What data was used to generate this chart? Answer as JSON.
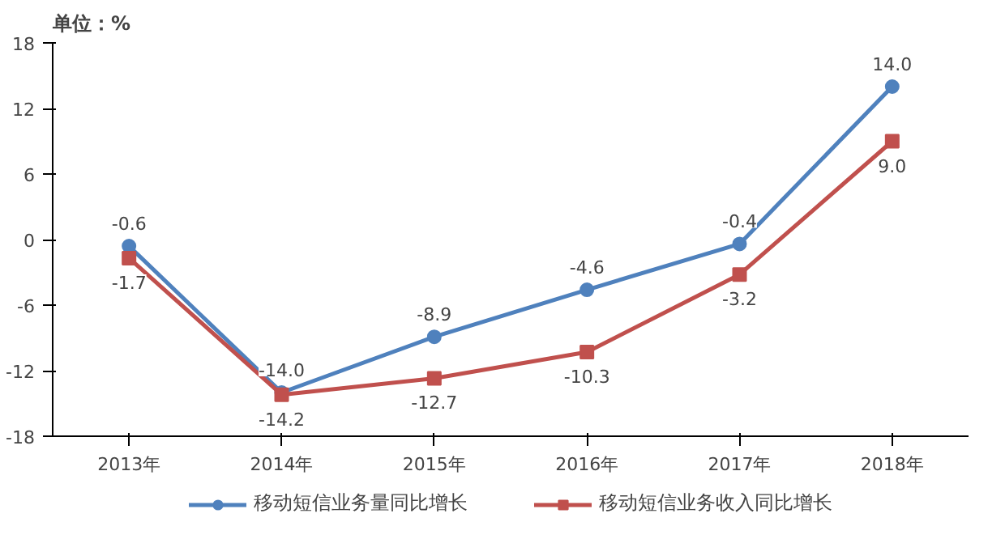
{
  "chart_data": {
    "type": "line",
    "title": "单位：%",
    "categories": [
      "2013年",
      "2014年",
      "2015年",
      "2016年",
      "2017年",
      "2018年"
    ],
    "series": [
      {
        "name": "移动短信业务量同比增长",
        "color": "#4f81bd",
        "marker": "circle",
        "values": [
          -0.6,
          -14.0,
          -8.9,
          -4.6,
          -0.4,
          14.0
        ],
        "value_labels": [
          "-0.6",
          "-14.0",
          "-8.9",
          "-4.6",
          "-0.4",
          "14.0"
        ]
      },
      {
        "name": "移动短信业务收入同比增长",
        "color": "#c0504d",
        "marker": "square",
        "values": [
          -1.7,
          -14.2,
          -12.7,
          -10.3,
          -3.2,
          9.0
        ],
        "value_labels": [
          "-1.7",
          "-14.2",
          "-12.7",
          "-10.3",
          "-3.2",
          "9.0"
        ]
      }
    ],
    "ylim": [
      -18,
      18
    ],
    "yticks": [
      -18,
      -12,
      -6,
      0,
      6,
      12,
      18
    ],
    "legend": "bottom",
    "line_style": "solid",
    "data_labels": true,
    "grid": false
  }
}
